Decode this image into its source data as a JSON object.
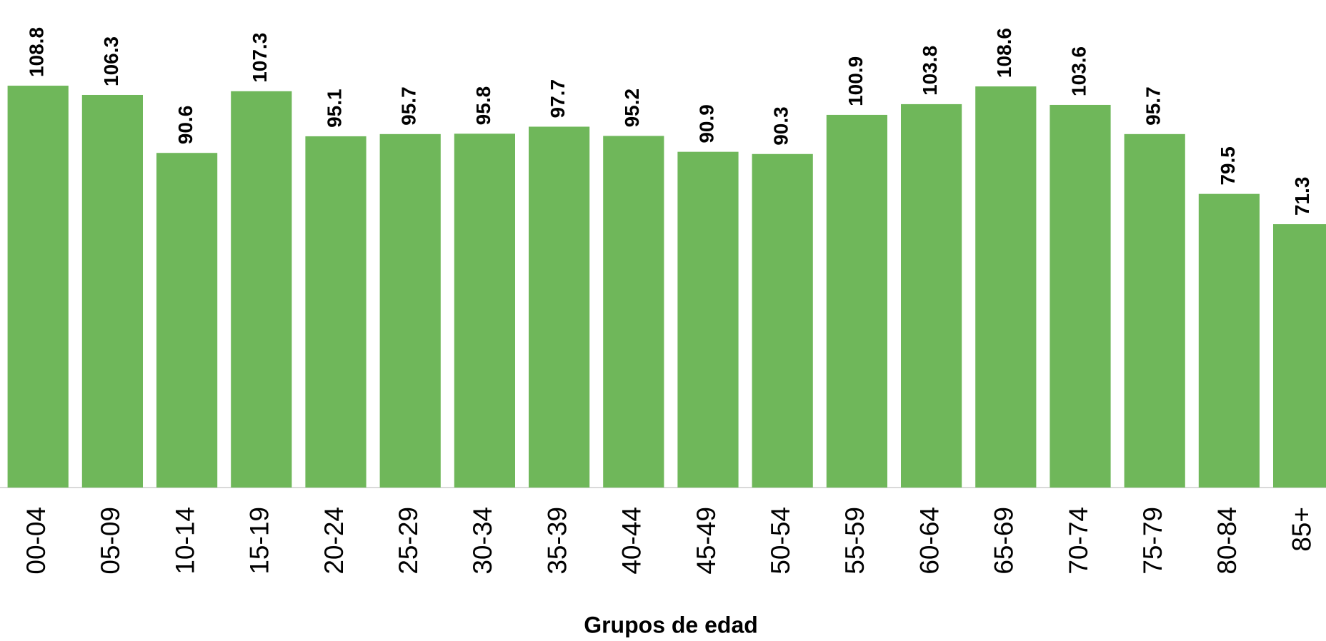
{
  "chart_data": {
    "type": "bar",
    "x_label": "Grupos de edad",
    "categories": [
      "00-04",
      "05-09",
      "10-14",
      "15-19",
      "20-24",
      "25-29",
      "30-34",
      "35-39",
      "40-44",
      "45-49",
      "50-54",
      "55-59",
      "60-64",
      "65-69",
      "70-74",
      "75-79",
      "80-84",
      "85+"
    ],
    "values": [
      108.8,
      106.3,
      90.6,
      107.3,
      95.1,
      95.7,
      95.8,
      97.7,
      95.2,
      90.9,
      90.3,
      100.9,
      103.8,
      108.6,
      103.6,
      95.7,
      79.5,
      71.3
    ],
    "color": "#6fb75a",
    "ylim": [
      0,
      132
    ]
  }
}
